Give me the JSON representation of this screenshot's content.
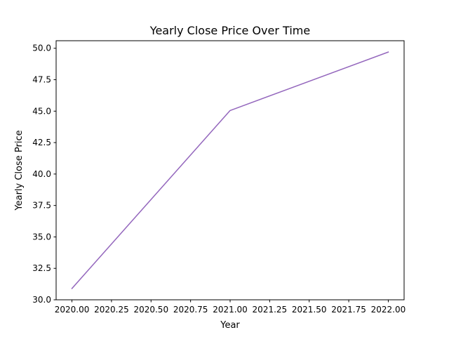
{
  "chart_data": {
    "type": "line",
    "title": "Yearly Close Price Over Time",
    "xlabel": "Year",
    "ylabel": "Yearly Close Price",
    "x": [
      2020.0,
      2021.0,
      2022.0
    ],
    "series": [
      {
        "values": [
          30.9,
          45.05,
          49.7
        ],
        "color": "#9467bd"
      }
    ],
    "xlim": [
      2019.9,
      2022.1
    ],
    "ylim": [
      30.0,
      50.6
    ],
    "xticks": [
      2020.0,
      2020.25,
      2020.5,
      2020.75,
      2021.0,
      2021.25,
      2021.5,
      2021.75,
      2022.0
    ],
    "xtick_labels": [
      "2020.00",
      "2020.25",
      "2020.50",
      "2020.75",
      "2021.00",
      "2021.25",
      "2021.50",
      "2021.75",
      "2022.00"
    ],
    "yticks": [
      30.0,
      32.5,
      35.0,
      37.5,
      40.0,
      42.5,
      45.0,
      47.5,
      50.0
    ],
    "ytick_labels": [
      "30.0",
      "32.5",
      "35.0",
      "37.5",
      "40.0",
      "42.5",
      "45.0",
      "47.5",
      "50.0"
    ],
    "grid": false,
    "legend": "none"
  }
}
